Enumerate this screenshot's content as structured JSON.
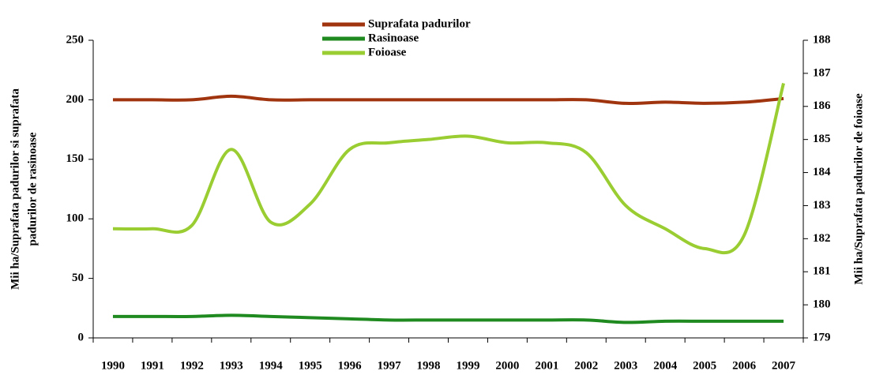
{
  "chart_data": {
    "type": "line",
    "categories": [
      "1990",
      "1991",
      "1992",
      "1993",
      "1994",
      "1995",
      "1996",
      "1997",
      "1998",
      "1999",
      "2000",
      "2001",
      "2002",
      "2003",
      "2004",
      "2005",
      "2006",
      "2007"
    ],
    "series": [
      {
        "name": "Suprafata padurilor",
        "color": "#a0340f",
        "values": [
          200,
          200,
          200,
          203,
          200,
          200,
          200,
          200,
          200,
          200,
          200,
          200,
          200,
          197,
          198,
          197,
          198,
          201
        ]
      },
      {
        "name": "Rasinoase",
        "color": "#1f8a1f",
        "values": [
          18,
          18,
          18,
          19,
          18,
          17,
          16,
          15,
          15,
          15,
          15,
          15,
          15,
          13,
          14,
          14,
          14,
          14
        ]
      },
      {
        "name": "Foioase",
        "color": "#9acd32",
        "axis": "y2",
        "values": [
          182.3,
          182.3,
          182.4,
          184.7,
          182.5,
          183.05,
          184.7,
          184.9,
          185.0,
          185.1,
          184.9,
          184.9,
          184.6,
          183.0,
          182.3,
          181.7,
          182.1,
          186.7
        ]
      }
    ],
    "ylabel": [
      "Mii ha/Suprafata padurilor si suprafata",
      "padurilor de rasinoase"
    ],
    "y2label": "Mii ha/Suprafata padurilor de foioase",
    "ylim": [
      0,
      250
    ],
    "yticks": [
      0,
      50,
      100,
      150,
      200,
      250
    ],
    "y2lim": [
      179,
      188
    ],
    "y2ticks": [
      179,
      180,
      181,
      182,
      183,
      184,
      185,
      186,
      187,
      188
    ],
    "grid": false
  }
}
